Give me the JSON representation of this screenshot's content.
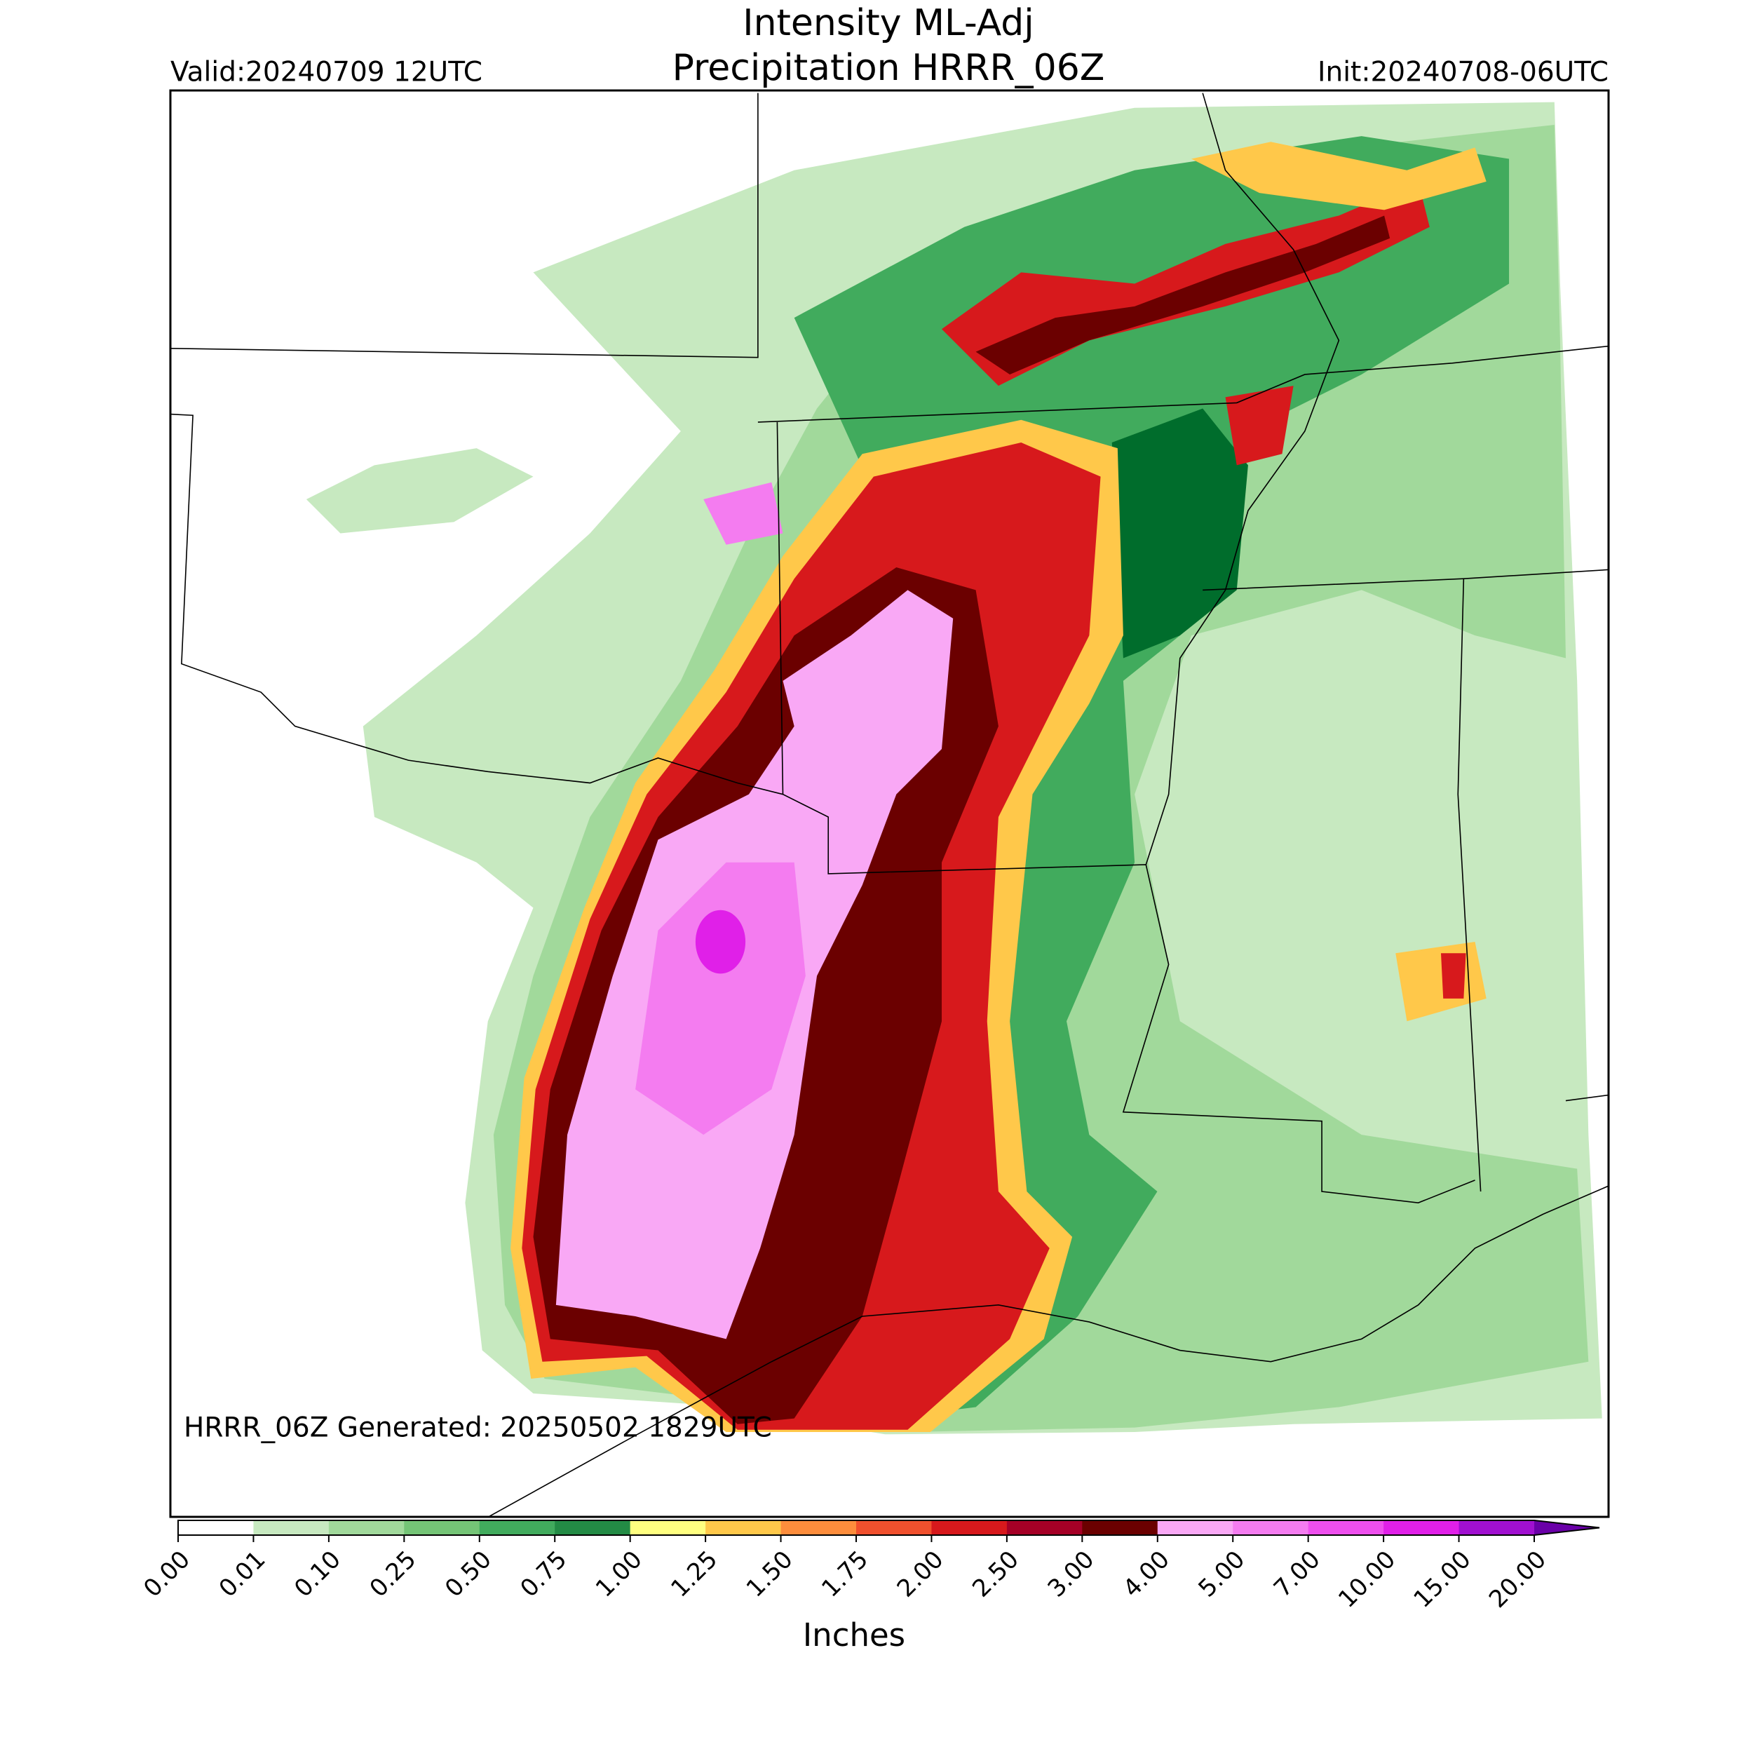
{
  "header": {
    "title": "Intensity ML-Adj",
    "subtitle": "Precipitation HRRR_06Z",
    "valid": "Valid:20240709 12UTC",
    "init": "Init:20240708-06UTC"
  },
  "map": {
    "note": "HRRR_06Z Generated: 20250502 1829UTC"
  },
  "colorbar": {
    "labels": [
      "0.00",
      "0.01",
      "0.10",
      "0.25",
      "0.50",
      "0.75",
      "1.00",
      "1.25",
      "1.50",
      "1.75",
      "2.00",
      "2.50",
      "3.00",
      "4.00",
      "5.00",
      "7.00",
      "10.00",
      "15.00",
      "20.00"
    ],
    "colors": [
      "#ffffff",
      "#c7e9c0",
      "#a1d99b",
      "#74c476",
      "#41ab5d",
      "#238b45",
      "#ffff80",
      "#ffc84a",
      "#fd8d3c",
      "#f0502d",
      "#d7191c",
      "#a50026",
      "#6b0000",
      "#f9a8f5",
      "#f47cf0",
      "#ee4fee",
      "#e020e8",
      "#a010d0"
    ],
    "extend_color": "#6a00a8",
    "label": "Inches"
  }
}
